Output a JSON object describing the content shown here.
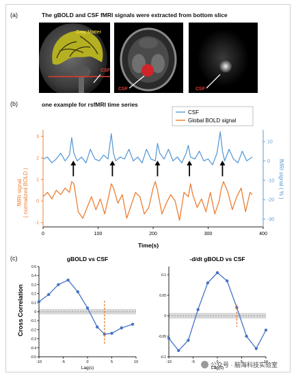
{
  "panel_a": {
    "label": "(a)",
    "title": "The gBOLD and CSF fMRI signals were extracted from bottom slice",
    "gray_matter_label": "Gray Matter",
    "csf_label": "CSF"
  },
  "panel_b": {
    "label": "(b)",
    "title": "one example for rsfMRI time series",
    "legend": [
      "CSF",
      "Global BOLD signal"
    ],
    "left_axis_label_line1": "fMRI signal",
    "left_axis_label_line2": "( normalized BOLD )",
    "right_axis_label": "fMRI signal ( % )",
    "xlabel": "Time(s)"
  },
  "panel_c": {
    "label": "(c)",
    "ylabel": "Cross Correlation"
  },
  "watermark": "公众号 · 脑海科技实验室",
  "colors": {
    "csf": "#5b9bd5",
    "gbold": "#ed7d31",
    "xcorr": "#4472c4",
    "marker": "#ed7d31",
    "arrow": "#000000"
  },
  "chart_data": [
    {
      "type": "line",
      "title": "",
      "xlabel": "Time(s)",
      "xlim": [
        0,
        400
      ],
      "xticks": [
        "0",
        "100",
        "200",
        "300",
        "400"
      ],
      "left_ylim": [
        -1.2,
        3.3
      ],
      "left_yticks": [
        "-1",
        "0",
        "1",
        "2",
        "3"
      ],
      "right_ylim": [
        -34,
        16
      ],
      "right_yticks": [
        "10",
        "0",
        "-10",
        "-20",
        "-30"
      ],
      "series": [
        {
          "name": "CSF",
          "axis": "right",
          "x": [
            0,
            8,
            16,
            24,
            32,
            40,
            48,
            52,
            56,
            62,
            70,
            78,
            86,
            94,
            102,
            110,
            118,
            124,
            128,
            132,
            140,
            148,
            156,
            164,
            172,
            180,
            188,
            196,
            204,
            208,
            212,
            220,
            228,
            236,
            244,
            252,
            260,
            264,
            268,
            276,
            284,
            292,
            300,
            308,
            316,
            322,
            326,
            330,
            338,
            346,
            354,
            362,
            370,
            380
          ],
          "values": [
            1,
            2,
            -1,
            1,
            4,
            0,
            3,
            12,
            4,
            0,
            2,
            -1,
            6,
            1,
            0,
            3,
            1,
            14,
            4,
            0,
            2,
            1,
            6,
            0,
            2,
            -1,
            6,
            1,
            0,
            9,
            4,
            1,
            6,
            0,
            2,
            -1,
            4,
            8,
            2,
            1,
            5,
            0,
            1,
            -2,
            4,
            15,
            5,
            0,
            6,
            1,
            -1,
            5,
            0,
            2
          ]
        },
        {
          "name": "Global BOLD signal",
          "axis": "left",
          "x": [
            0,
            8,
            16,
            24,
            32,
            40,
            48,
            52,
            56,
            64,
            72,
            80,
            88,
            96,
            104,
            112,
            120,
            124,
            128,
            136,
            144,
            152,
            160,
            168,
            176,
            184,
            192,
            200,
            204,
            208,
            216,
            224,
            232,
            240,
            248,
            256,
            264,
            268,
            272,
            280,
            288,
            296,
            304,
            312,
            320,
            324,
            328,
            336,
            344,
            352,
            360,
            368,
            376,
            380
          ],
          "values": [
            0.2,
            0.4,
            0.1,
            0.5,
            0.3,
            0.6,
            0.4,
            0.9,
            0.8,
            -0.5,
            -0.8,
            -0.3,
            0.2,
            -0.4,
            0.1,
            -0.6,
            0.3,
            0.8,
            0.6,
            -0.1,
            0.3,
            -0.8,
            -0.2,
            0.4,
            0.2,
            -0.6,
            -0.3,
            0.6,
            0.9,
            0.5,
            -0.6,
            -0.1,
            0.3,
            0.0,
            -0.9,
            0.4,
            0.2,
            0.8,
            0.3,
            -0.3,
            0.1,
            -0.5,
            0.4,
            -0.6,
            0.0,
            0.6,
            0.9,
            0.4,
            -0.4,
            0.2,
            0.6,
            -0.5,
            0.4,
            0.3
          ]
        }
      ],
      "arrow_times": [
        55,
        126,
        208,
        266,
        326
      ]
    },
    {
      "type": "line",
      "title": "gBOLD vs CSF",
      "xlabel": "Lag(s)",
      "ylabel": "Cross Correlation",
      "xlim": [
        -10,
        10
      ],
      "ylim": [
        -0.5,
        0.5
      ],
      "xticks": [
        "-10",
        "-5",
        "0",
        "5",
        "10"
      ],
      "yticks": [
        "0.5",
        "0.4",
        "0.3",
        "0.2",
        "0.1",
        "0",
        "-0.1",
        "-0.2",
        "-0.3",
        "-0.4",
        "-0.5"
      ],
      "series": [
        {
          "name": "",
          "x": [
            -10,
            -8,
            -6,
            -4,
            -2,
            0,
            2,
            3.5,
            5,
            7,
            9.3
          ],
          "values": [
            0.11,
            0.19,
            0.3,
            0.35,
            0.22,
            0.04,
            -0.17,
            -0.25,
            -0.24,
            -0.18,
            -0.14
          ]
        }
      ],
      "marker_lag": 3.5,
      "confidence_band": [
        -0.03,
        0.03
      ]
    },
    {
      "type": "line",
      "title": "-d/dt gBOLD vs CSF",
      "xlabel": "Lag(s)",
      "ylabel": "",
      "xlim": [
        -10,
        10
      ],
      "ylim": [
        -0.1,
        0.12
      ],
      "xticks": [
        "-10",
        "-5",
        "0",
        "5",
        "10"
      ],
      "yticks": [
        "0.1",
        "0.05",
        "0",
        "-0.05",
        "-0.1"
      ],
      "series": [
        {
          "name": "",
          "x": [
            -10,
            -8,
            -6,
            -4,
            -2,
            0,
            2,
            4,
            6,
            8,
            10
          ],
          "values": [
            -0.055,
            -0.085,
            -0.06,
            0.015,
            0.08,
            0.105,
            0.085,
            0.02,
            -0.05,
            -0.08,
            -0.035
          ]
        }
      ],
      "marker_lag": 4,
      "confidence_band": [
        -0.007,
        0.007
      ]
    }
  ]
}
